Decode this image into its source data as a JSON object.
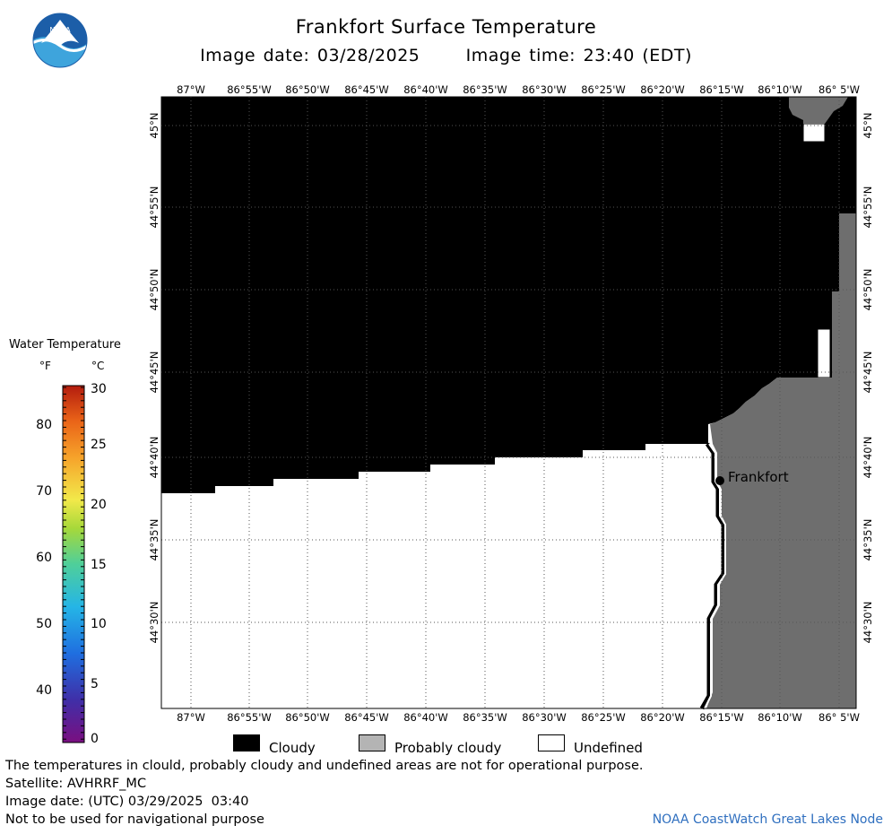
{
  "header": {
    "title": "Frankfort Surface Temperature",
    "image_date_label": "Image date: 03/28/2025",
    "image_time_label": "Image time: 23:40 (EDT)"
  },
  "logo": {
    "text": "NOAA",
    "colors": [
      "#1c5ea8",
      "#3ea4dc"
    ]
  },
  "map": {
    "lon_labels": [
      "87°W",
      "86°55'W",
      "86°50'W",
      "86°45'W",
      "86°40'W",
      "86°35'W",
      "86°30'W",
      "86°25'W",
      "86°20'W",
      "86°15'W",
      "86°10'W",
      "86° 5'W"
    ],
    "lat_labels": [
      "45°N",
      "44°55'N",
      "44°50'N",
      "44°45'N",
      "44°40'N",
      "44°35'N",
      "44°30'N"
    ],
    "place": "Frankfort",
    "colors": {
      "cloudy": "#000000",
      "land": "#6e6e6e",
      "undefined": "#ffffff"
    }
  },
  "color_bar": {
    "title": "Water Temperature",
    "unit_f": "°F",
    "unit_c": "°C",
    "f_ticks": [
      "80",
      "70",
      "60",
      "50",
      "40"
    ],
    "c_ticks": [
      "30",
      "25",
      "20",
      "15",
      "10",
      "5",
      "0"
    ],
    "range_c": [
      0,
      30
    ],
    "scale_colors": [
      "#7a0f80",
      "#3f2fa8",
      "#1f6fe0",
      "#25b5e6",
      "#4fcf9a",
      "#a6d83a",
      "#f2e94a",
      "#f6a22a",
      "#ea6418",
      "#b31c0e"
    ]
  },
  "legend": [
    {
      "label": "Cloudy",
      "color": "#000000"
    },
    {
      "label": "Probably cloudy",
      "color": "#b4b4b4"
    },
    {
      "label": "Undefined",
      "color": "#ffffff"
    }
  ],
  "footer": {
    "disclaimer": "The temperatures in clould, probably cloudy and undefined areas are not for operational purpose.",
    "satellite": "Satellite: AVHRRF_MC",
    "utc_date": "Image date: (UTC) 03/29/2025  03:40",
    "nav_warning": "Not to be used for navigational purpose",
    "credit": "NOAA CoastWatch Great Lakes Node"
  }
}
